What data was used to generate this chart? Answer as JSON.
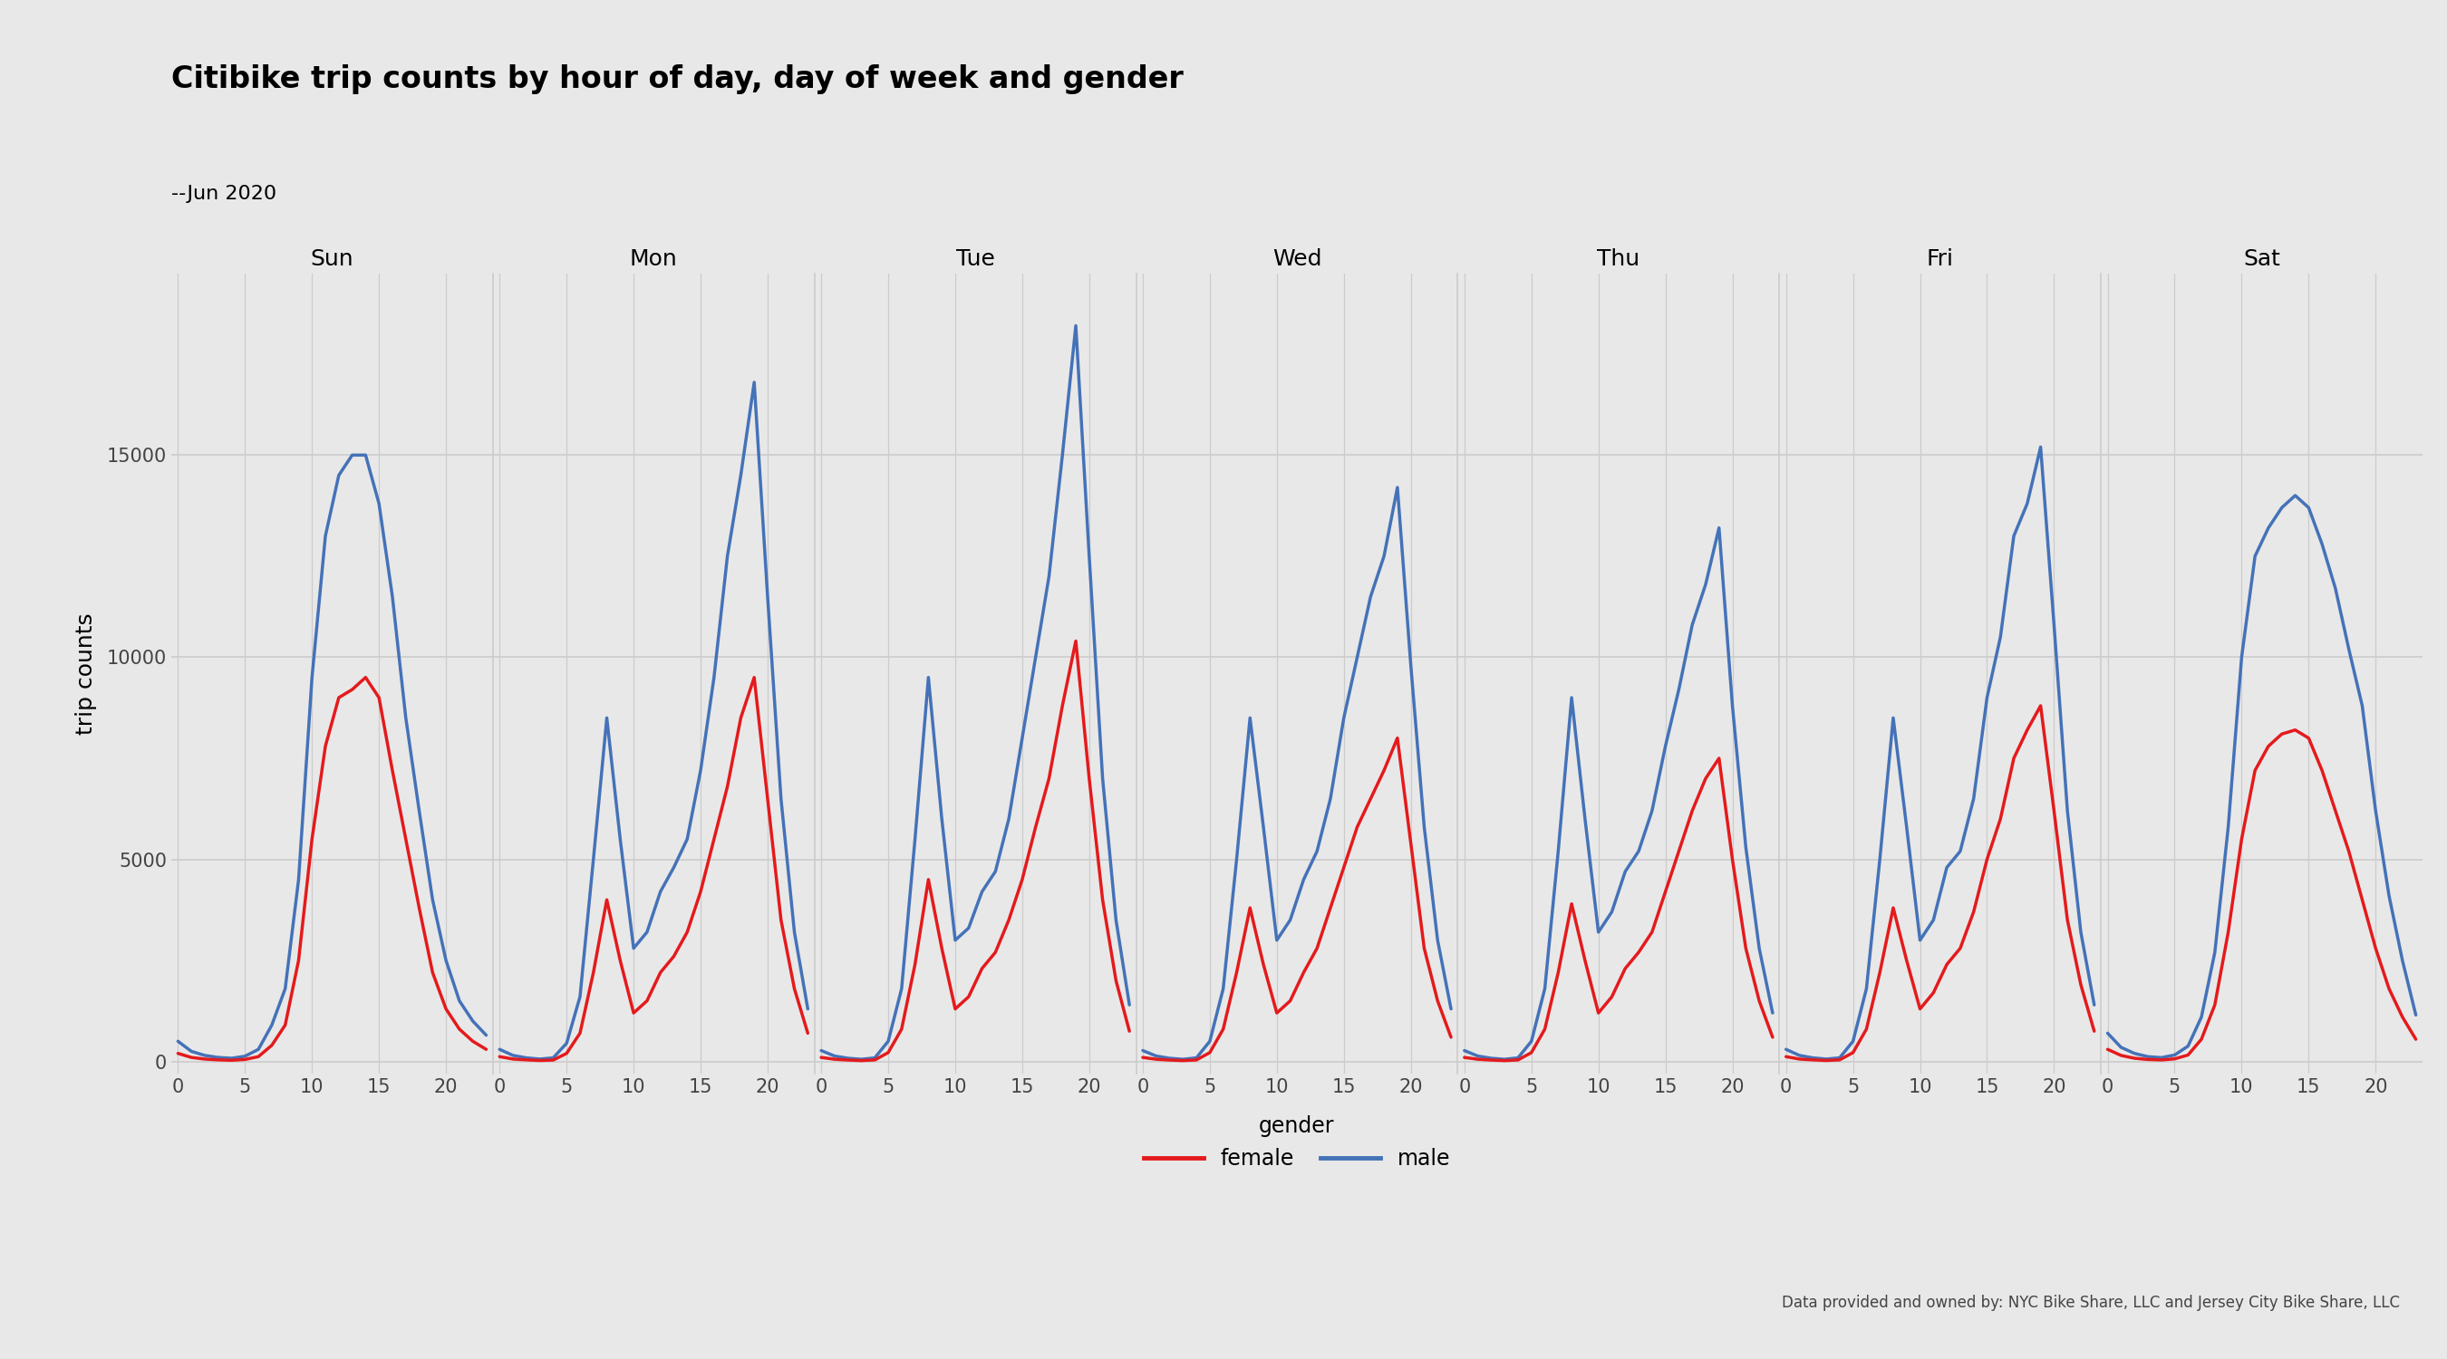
{
  "title": "Citibike trip counts by hour of day, day of week and gender",
  "subtitle": "--Jun 2020",
  "ylabel": "trip counts",
  "background_color": "#E8E8E8",
  "female_color": "#E41A1C",
  "male_color": "#4472B8",
  "days": [
    "Sun",
    "Mon",
    "Tue",
    "Wed",
    "Thu",
    "Fri",
    "Sat"
  ],
  "hours": [
    0,
    1,
    2,
    3,
    4,
    5,
    6,
    7,
    8,
    9,
    10,
    11,
    12,
    13,
    14,
    15,
    16,
    17,
    18,
    19,
    20,
    21,
    22,
    23
  ],
  "female": {
    "Sun": [
      200,
      100,
      60,
      40,
      30,
      50,
      120,
      400,
      900,
      2500,
      5500,
      7800,
      9000,
      9200,
      9500,
      9000,
      7200,
      5500,
      3800,
      2200,
      1300,
      800,
      500,
      300
    ],
    "Mon": [
      120,
      60,
      40,
      25,
      35,
      200,
      700,
      2200,
      4000,
      2500,
      1200,
      1500,
      2200,
      2600,
      3200,
      4200,
      5500,
      6800,
      8500,
      9500,
      6500,
      3500,
      1800,
      700
    ],
    "Tue": [
      100,
      55,
      35,
      22,
      38,
      220,
      800,
      2400,
      4500,
      2800,
      1300,
      1600,
      2300,
      2700,
      3500,
      4500,
      5800,
      7000,
      8800,
      10400,
      7000,
      4000,
      2000,
      750
    ],
    "Wed": [
      100,
      55,
      35,
      22,
      38,
      220,
      800,
      2200,
      3800,
      2400,
      1200,
      1500,
      2200,
      2800,
      3800,
      4800,
      5800,
      6500,
      7200,
      8000,
      5400,
      2800,
      1500,
      600
    ],
    "Thu": [
      100,
      55,
      35,
      22,
      38,
      220,
      800,
      2200,
      3900,
      2500,
      1200,
      1600,
      2300,
      2700,
      3200,
      4200,
      5200,
      6200,
      7000,
      7500,
      5000,
      2800,
      1500,
      600
    ],
    "Fri": [
      120,
      60,
      40,
      25,
      40,
      220,
      800,
      2200,
      3800,
      2500,
      1300,
      1700,
      2400,
      2800,
      3700,
      5000,
      6000,
      7500,
      8200,
      8800,
      6200,
      3500,
      1900,
      750
    ],
    "Sat": [
      300,
      150,
      80,
      50,
      38,
      65,
      160,
      550,
      1400,
      3200,
      5500,
      7200,
      7800,
      8100,
      8200,
      8000,
      7200,
      6200,
      5200,
      4000,
      2800,
      1800,
      1100,
      550
    ]
  },
  "male": {
    "Sun": [
      500,
      250,
      150,
      100,
      80,
      130,
      300,
      900,
      1800,
      4500,
      9500,
      13000,
      14500,
      15000,
      15000,
      13800,
      11500,
      8500,
      6200,
      4000,
      2500,
      1500,
      1000,
      650
    ],
    "Mon": [
      300,
      150,
      90,
      60,
      90,
      450,
      1600,
      5000,
      8500,
      5500,
      2800,
      3200,
      4200,
      4800,
      5500,
      7200,
      9500,
      12500,
      14500,
      16800,
      11500,
      6500,
      3200,
      1300
    ],
    "Tue": [
      270,
      135,
      80,
      55,
      90,
      500,
      1800,
      5500,
      9500,
      6000,
      3000,
      3300,
      4200,
      4700,
      6000,
      8000,
      10000,
      12000,
      15000,
      18200,
      12500,
      7000,
      3500,
      1400
    ],
    "Wed": [
      270,
      135,
      80,
      55,
      90,
      500,
      1800,
      5000,
      8500,
      5800,
      3000,
      3500,
      4500,
      5200,
      6500,
      8500,
      10000,
      11500,
      12500,
      14200,
      9800,
      5800,
      3000,
      1300
    ],
    "Thu": [
      270,
      135,
      80,
      55,
      90,
      500,
      1800,
      5200,
      9000,
      6000,
      3200,
      3700,
      4700,
      5200,
      6200,
      7800,
      9200,
      10800,
      11800,
      13200,
      8800,
      5300,
      2800,
      1200
    ],
    "Fri": [
      300,
      150,
      90,
      60,
      90,
      500,
      1800,
      5000,
      8500,
      5800,
      3000,
      3500,
      4800,
      5200,
      6500,
      9000,
      10500,
      13000,
      13800,
      15200,
      10800,
      6200,
      3200,
      1400
    ],
    "Sat": [
      700,
      350,
      200,
      120,
      95,
      160,
      380,
      1100,
      2700,
      5800,
      10000,
      12500,
      13200,
      13700,
      14000,
      13700,
      12800,
      11700,
      10200,
      8800,
      6200,
      4100,
      2500,
      1150
    ]
  },
  "yticks": [
    0,
    5000,
    10000,
    15000
  ],
  "xticks": [
    0,
    5,
    10,
    15,
    20
  ],
  "ylim": [
    -300,
    19500
  ],
  "grid_color": "#CCCCCC",
  "tick_color": "#444444",
  "title_fontsize": 24,
  "subtitle_fontsize": 16,
  "ylabel_fontsize": 18,
  "tick_fontsize": 15,
  "day_label_fontsize": 18,
  "legend_fontsize": 17,
  "line_width": 2.5,
  "footer_text": "Data provided and owned by: NYC Bike Share, LLC and Jersey City Bike Share, LLC"
}
